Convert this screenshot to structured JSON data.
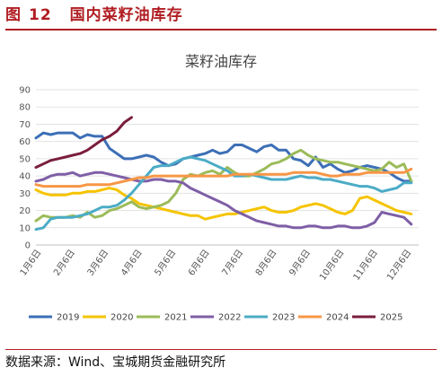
{
  "caption": {
    "label": "图",
    "number": "12",
    "title": "国内菜籽油库存"
  },
  "source": "数据来源：Wind、宝城期货金融研究所",
  "chart_data": {
    "type": "line",
    "title": "菜籽油库存",
    "ylim": [
      0,
      90
    ],
    "yticks": [
      "0",
      "10",
      "20",
      "30",
      "40",
      "50",
      "60",
      "70",
      "80",
      "90"
    ],
    "x_tick_labels": [
      "1月6日",
      "2月6日",
      "3月6日",
      "4月6日",
      "5月6日",
      "6月6日",
      "7月6日",
      "8月6日",
      "9月6日",
      "10月6日",
      "11月6日",
      "12月6日"
    ],
    "xlim": [
      0,
      52
    ],
    "grid": true,
    "legend_position": "bottom",
    "series": [
      {
        "name": "2019",
        "color": "#3c6fb6",
        "x": [
          0,
          1,
          2,
          3,
          4,
          5,
          6,
          7,
          8,
          9,
          10,
          11,
          12,
          13,
          14,
          15,
          16,
          17,
          18,
          19,
          20,
          21,
          22,
          23,
          24,
          25,
          26,
          27,
          28,
          29,
          30,
          31,
          32,
          33,
          34,
          35,
          36,
          37,
          38,
          39,
          40,
          41,
          42,
          43,
          44,
          45,
          46,
          47,
          48,
          49,
          50,
          51
        ],
        "values": [
          62,
          65,
          64,
          65,
          65,
          65,
          62,
          64,
          63,
          63,
          56,
          53,
          50,
          50,
          51,
          52,
          51,
          48,
          46,
          47,
          50,
          51,
          52,
          53,
          55,
          53,
          54,
          58,
          58,
          56,
          54,
          57,
          58,
          55,
          55,
          50,
          49,
          46,
          51,
          45,
          47,
          44,
          42,
          43,
          45,
          46,
          45,
          44,
          42,
          39,
          37,
          37
        ]
      },
      {
        "name": "2020",
        "color": "#f5c400",
        "x": [
          0,
          1,
          2,
          3,
          4,
          5,
          6,
          7,
          8,
          9,
          10,
          11,
          12,
          13,
          14,
          15,
          16,
          17,
          18,
          19,
          20,
          21,
          22,
          23,
          24,
          25,
          26,
          27,
          28,
          29,
          30,
          31,
          32,
          33,
          34,
          35,
          36,
          37,
          38,
          39,
          40,
          41,
          42,
          43,
          44,
          45,
          46,
          47,
          48,
          49,
          50,
          51
        ],
        "values": [
          32,
          30,
          29,
          29,
          29,
          30,
          30,
          31,
          31,
          32,
          33,
          32,
          29,
          27,
          24,
          23,
          22,
          21,
          20,
          19,
          18,
          17,
          17,
          15,
          16,
          17,
          18,
          18,
          19,
          20,
          21,
          22,
          20,
          19,
          19,
          20,
          22,
          23,
          24,
          23,
          21,
          19,
          18,
          20,
          27,
          28,
          26,
          24,
          22,
          20,
          19,
          18
        ]
      },
      {
        "name": "2021",
        "color": "#9bbb59",
        "x": [
          0,
          1,
          2,
          3,
          4,
          5,
          6,
          7,
          8,
          9,
          10,
          11,
          12,
          13,
          14,
          15,
          16,
          17,
          18,
          19,
          20,
          21,
          22,
          23,
          24,
          25,
          26,
          27,
          28,
          29,
          30,
          31,
          32,
          33,
          34,
          35,
          36,
          37,
          38,
          39,
          40,
          41,
          42,
          43,
          44,
          45,
          46,
          47,
          48,
          49,
          50,
          51
        ],
        "values": [
          14,
          17,
          16,
          16,
          16,
          17,
          16,
          19,
          16,
          17,
          20,
          21,
          23,
          25,
          22,
          21,
          22,
          23,
          25,
          30,
          38,
          41,
          40,
          42,
          43,
          41,
          45,
          42,
          40,
          40,
          42,
          44,
          47,
          48,
          50,
          53,
          55,
          52,
          50,
          49,
          48,
          48,
          47,
          46,
          45,
          44,
          43,
          44,
          48,
          45,
          47,
          37
        ]
      },
      {
        "name": "2022",
        "color": "#7e5fa6",
        "x": [
          0,
          1,
          2,
          3,
          4,
          5,
          6,
          7,
          8,
          9,
          10,
          11,
          12,
          13,
          14,
          15,
          16,
          17,
          18,
          19,
          20,
          21,
          22,
          23,
          24,
          25,
          26,
          27,
          28,
          29,
          30,
          31,
          32,
          33,
          34,
          35,
          36,
          37,
          38,
          39,
          40,
          41,
          42,
          43,
          44,
          45,
          46,
          47,
          48,
          49,
          50,
          51
        ],
        "values": [
          37,
          38,
          40,
          41,
          41,
          42,
          40,
          41,
          42,
          42,
          41,
          40,
          39,
          38,
          37,
          37,
          38,
          38,
          37,
          37,
          36,
          33,
          31,
          29,
          27,
          25,
          23,
          20,
          18,
          16,
          14,
          13,
          12,
          11,
          11,
          10,
          10,
          11,
          11,
          10,
          10,
          11,
          11,
          10,
          10,
          11,
          13,
          19,
          18,
          17,
          16,
          12
        ]
      },
      {
        "name": "2023",
        "color": "#4bacc6",
        "x": [
          0,
          1,
          2,
          3,
          4,
          5,
          6,
          7,
          8,
          9,
          10,
          11,
          12,
          13,
          14,
          15,
          16,
          17,
          18,
          19,
          20,
          21,
          22,
          23,
          24,
          25,
          26,
          27,
          28,
          29,
          30,
          31,
          32,
          33,
          34,
          35,
          36,
          37,
          38,
          39,
          40,
          41,
          42,
          43,
          44,
          45,
          46,
          47,
          48,
          49,
          50,
          51
        ],
        "values": [
          9,
          10,
          15,
          16,
          16,
          16,
          17,
          18,
          20,
          22,
          22,
          23,
          26,
          30,
          35,
          40,
          45,
          46,
          46,
          48,
          50,
          51,
          50,
          49,
          47,
          45,
          43,
          40,
          40,
          41,
          40,
          39,
          38,
          38,
          38,
          39,
          40,
          39,
          39,
          38,
          38,
          37,
          36,
          35,
          34,
          34,
          33,
          31,
          32,
          33,
          36,
          36
        ]
      },
      {
        "name": "2024",
        "color": "#f79646",
        "x": [
          0,
          1,
          2,
          3,
          4,
          5,
          6,
          7,
          8,
          9,
          10,
          11,
          12,
          13,
          14,
          15,
          16,
          17,
          18,
          19,
          20,
          21,
          22,
          23,
          24,
          25,
          26,
          27,
          28,
          29,
          30,
          31,
          32,
          33,
          34,
          35,
          36,
          37,
          38,
          39,
          40,
          41,
          42,
          43,
          44,
          45,
          46,
          47,
          48,
          49,
          50,
          51
        ],
        "values": [
          35,
          34,
          34,
          34,
          34,
          34,
          34,
          35,
          35,
          35,
          35,
          36,
          37,
          38,
          39,
          39,
          40,
          40,
          40,
          40,
          40,
          40,
          40,
          40,
          40,
          40,
          40,
          41,
          41,
          41,
          41,
          41,
          41,
          41,
          41,
          42,
          42,
          42,
          42,
          41,
          40,
          40,
          41,
          41,
          41,
          42,
          42,
          42,
          42,
          42,
          42,
          44
        ]
      },
      {
        "name": "2025",
        "color": "#7b1e3c",
        "x": [
          0,
          1,
          2,
          3,
          4,
          5,
          6,
          7,
          8,
          9,
          10,
          11,
          12,
          13
        ],
        "values": [
          45,
          47,
          49,
          50,
          51,
          52,
          53,
          55,
          58,
          61,
          63,
          66,
          71,
          74
        ]
      }
    ]
  }
}
